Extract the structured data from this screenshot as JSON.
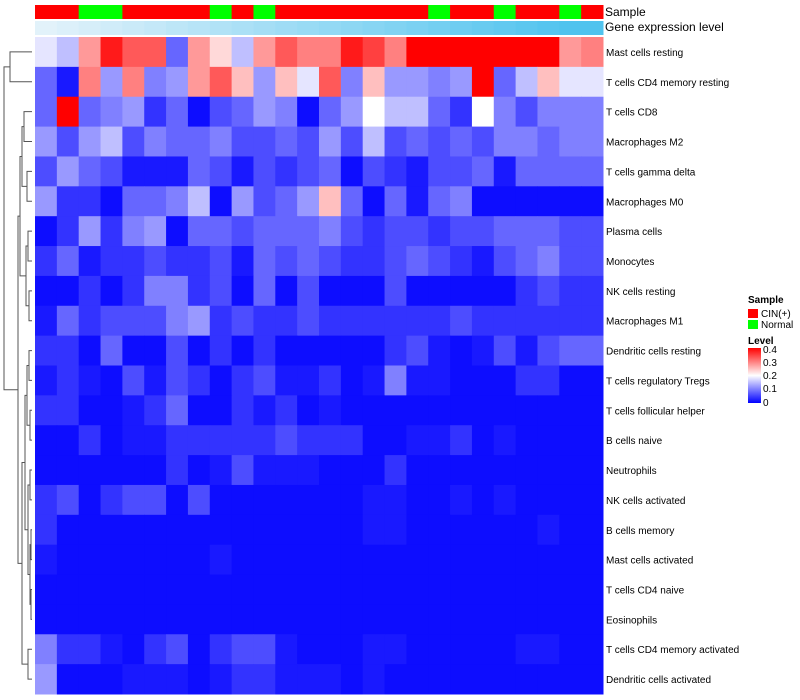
{
  "chart_data": {
    "type": "heatmap",
    "title": "",
    "annotation_tracks": [
      {
        "name": "Sample",
        "label": "Sample"
      },
      {
        "name": "Gene expression level",
        "label": "Gene expression level"
      }
    ],
    "samples": [
      "C",
      "C",
      "N",
      "N",
      "C",
      "C",
      "C",
      "C",
      "N",
      "C",
      "N",
      "C",
      "C",
      "C",
      "C",
      "C",
      "C",
      "C",
      "N",
      "C",
      "C",
      "N",
      "C",
      "C",
      "N",
      "C"
    ],
    "expression_track": [
      0.04,
      0.08,
      0.12,
      0.16,
      0.2,
      0.24,
      0.28,
      0.32,
      0.36,
      0.4,
      0.44,
      0.48,
      0.52,
      0.56,
      0.6,
      0.64,
      0.68,
      0.72,
      0.76,
      0.8,
      0.84,
      0.88,
      0.92,
      0.96,
      1.0,
      1.0
    ],
    "rows": [
      "Mast cells resting",
      "T cells CD4 memory resting",
      "T cells CD8",
      "Macrophages M2",
      "T cells gamma delta",
      "Macrophages M0",
      "Plasma cells",
      "Monocytes",
      "NK cells resting",
      "Macrophages M1",
      "Dendritic cells resting",
      "T cells regulatory  Tregs",
      "T cells follicular helper",
      "B cells naive",
      "Neutrophils",
      "NK cells activated",
      "B cells memory",
      "Mast cells activated",
      "T cells CD4 naive",
      "Eosinophils",
      "T cells CD4 memory activated",
      "Dendritic cells activated"
    ],
    "values": [
      [
        0.18,
        0.15,
        0.28,
        0.38,
        0.33,
        0.33,
        0.08,
        0.28,
        0.23,
        0.15,
        0.28,
        0.33,
        0.3,
        0.3,
        0.38,
        0.35,
        0.3,
        0.4,
        0.4,
        0.4,
        0.4,
        0.4,
        0.4,
        0.4,
        0.28,
        0.3
      ],
      [
        0.08,
        0.02,
        0.3,
        0.12,
        0.3,
        0.1,
        0.12,
        0.28,
        0.33,
        0.25,
        0.12,
        0.25,
        0.18,
        0.33,
        0.1,
        0.25,
        0.12,
        0.12,
        0.1,
        0.12,
        0.4,
        0.08,
        0.15,
        0.25,
        0.18,
        0.18
      ],
      [
        0.08,
        0.4,
        0.08,
        0.1,
        0.12,
        0.04,
        0.08,
        0.01,
        0.06,
        0.08,
        0.12,
        0.1,
        0.01,
        0.08,
        0.12,
        0.2,
        0.15,
        0.15,
        0.08,
        0.04,
        0.2,
        0.1,
        0.06,
        0.1,
        0.1,
        0.1
      ],
      [
        0.12,
        0.06,
        0.12,
        0.15,
        0.06,
        0.1,
        0.08,
        0.08,
        0.1,
        0.06,
        0.06,
        0.08,
        0.06,
        0.12,
        0.06,
        0.15,
        0.06,
        0.08,
        0.06,
        0.08,
        0.06,
        0.1,
        0.1,
        0.08,
        0.1,
        0.1
      ],
      [
        0.06,
        0.12,
        0.08,
        0.06,
        0.02,
        0.02,
        0.02,
        0.08,
        0.06,
        0.02,
        0.06,
        0.04,
        0.06,
        0.08,
        0.01,
        0.06,
        0.04,
        0.02,
        0.06,
        0.06,
        0.08,
        0.02,
        0.08,
        0.08,
        0.08,
        0.08
      ],
      [
        0.12,
        0.04,
        0.04,
        0.01,
        0.08,
        0.08,
        0.1,
        0.15,
        0.01,
        0.12,
        0.06,
        0.08,
        0.12,
        0.25,
        0.08,
        0.01,
        0.08,
        0.02,
        0.08,
        0.1,
        0.01,
        0.01,
        0.01,
        0.01,
        0.01,
        0.01
      ],
      [
        0.01,
        0.04,
        0.12,
        0.04,
        0.1,
        0.12,
        0.01,
        0.08,
        0.08,
        0.06,
        0.08,
        0.08,
        0.08,
        0.1,
        0.06,
        0.04,
        0.06,
        0.06,
        0.04,
        0.06,
        0.06,
        0.08,
        0.08,
        0.08,
        0.06,
        0.06
      ],
      [
        0.04,
        0.08,
        0.02,
        0.04,
        0.04,
        0.06,
        0.04,
        0.04,
        0.06,
        0.02,
        0.08,
        0.06,
        0.08,
        0.06,
        0.04,
        0.04,
        0.06,
        0.08,
        0.06,
        0.04,
        0.02,
        0.06,
        0.08,
        0.1,
        0.06,
        0.06
      ],
      [
        0.01,
        0.01,
        0.04,
        0.01,
        0.04,
        0.1,
        0.1,
        0.04,
        0.06,
        0.01,
        0.08,
        0.01,
        0.06,
        0.01,
        0.01,
        0.01,
        0.06,
        0.01,
        0.01,
        0.01,
        0.01,
        0.01,
        0.04,
        0.06,
        0.04,
        0.04
      ],
      [
        0.02,
        0.08,
        0.04,
        0.06,
        0.06,
        0.06,
        0.1,
        0.12,
        0.04,
        0.06,
        0.04,
        0.04,
        0.06,
        0.04,
        0.04,
        0.04,
        0.04,
        0.04,
        0.04,
        0.06,
        0.04,
        0.04,
        0.04,
        0.04,
        0.04,
        0.04
      ],
      [
        0.04,
        0.04,
        0.01,
        0.08,
        0.01,
        0.01,
        0.06,
        0.01,
        0.04,
        0.01,
        0.04,
        0.01,
        0.01,
        0.01,
        0.01,
        0.01,
        0.04,
        0.06,
        0.02,
        0.01,
        0.02,
        0.06,
        0.02,
        0.06,
        0.08,
        0.08
      ],
      [
        0.02,
        0.04,
        0.02,
        0.01,
        0.06,
        0.02,
        0.06,
        0.04,
        0.01,
        0.04,
        0.06,
        0.02,
        0.02,
        0.04,
        0.01,
        0.02,
        0.1,
        0.02,
        0.02,
        0.01,
        0.01,
        0.01,
        0.04,
        0.04,
        0.01,
        0.01
      ],
      [
        0.04,
        0.04,
        0.01,
        0.01,
        0.02,
        0.04,
        0.08,
        0.01,
        0.01,
        0.04,
        0.02,
        0.04,
        0.01,
        0.02,
        0.01,
        0.01,
        0.01,
        0.01,
        0.01,
        0.01,
        0.01,
        0.01,
        0.01,
        0.01,
        0.01,
        0.01
      ],
      [
        0.01,
        0.01,
        0.04,
        0.01,
        0.02,
        0.02,
        0.04,
        0.04,
        0.04,
        0.04,
        0.04,
        0.06,
        0.04,
        0.04,
        0.04,
        0.01,
        0.01,
        0.02,
        0.02,
        0.04,
        0.01,
        0.02,
        0.01,
        0.01,
        0.01,
        0.01
      ],
      [
        0.01,
        0.01,
        0.01,
        0.01,
        0.01,
        0.01,
        0.04,
        0.01,
        0.02,
        0.06,
        0.02,
        0.02,
        0.02,
        0.01,
        0.01,
        0.01,
        0.04,
        0.01,
        0.01,
        0.01,
        0.01,
        0.01,
        0.01,
        0.01,
        0.01,
        0.01
      ],
      [
        0.04,
        0.06,
        0.01,
        0.04,
        0.06,
        0.06,
        0.01,
        0.06,
        0.01,
        0.01,
        0.01,
        0.01,
        0.01,
        0.01,
        0.01,
        0.02,
        0.02,
        0.01,
        0.01,
        0.02,
        0.01,
        0.02,
        0.01,
        0.01,
        0.01,
        0.01
      ],
      [
        0.04,
        0.01,
        0.01,
        0.01,
        0.01,
        0.01,
        0.01,
        0.01,
        0.01,
        0.01,
        0.01,
        0.01,
        0.01,
        0.01,
        0.01,
        0.02,
        0.02,
        0.01,
        0.01,
        0.01,
        0.01,
        0.01,
        0.01,
        0.02,
        0.01,
        0.01
      ],
      [
        0.02,
        0.01,
        0.01,
        0.01,
        0.01,
        0.01,
        0.01,
        0.01,
        0.02,
        0.01,
        0.01,
        0.01,
        0.01,
        0.01,
        0.01,
        0.01,
        0.01,
        0.01,
        0.01,
        0.01,
        0.01,
        0.01,
        0.01,
        0.01,
        0.01,
        0.01
      ],
      [
        0.01,
        0.01,
        0.01,
        0.01,
        0.01,
        0.01,
        0.01,
        0.01,
        0.01,
        0.01,
        0.01,
        0.01,
        0.01,
        0.01,
        0.01,
        0.01,
        0.01,
        0.01,
        0.01,
        0.01,
        0.01,
        0.01,
        0.01,
        0.01,
        0.01,
        0.01
      ],
      [
        0.01,
        0.01,
        0.01,
        0.01,
        0.01,
        0.01,
        0.01,
        0.01,
        0.01,
        0.01,
        0.01,
        0.01,
        0.01,
        0.01,
        0.01,
        0.01,
        0.01,
        0.01,
        0.01,
        0.01,
        0.01,
        0.01,
        0.01,
        0.01,
        0.01,
        0.01
      ],
      [
        0.1,
        0.04,
        0.04,
        0.02,
        0.01,
        0.04,
        0.06,
        0.01,
        0.04,
        0.06,
        0.06,
        0.02,
        0.01,
        0.01,
        0.01,
        0.02,
        0.02,
        0.01,
        0.01,
        0.01,
        0.01,
        0.01,
        0.02,
        0.02,
        0.01,
        0.01
      ],
      [
        0.12,
        0.01,
        0.01,
        0.01,
        0.02,
        0.02,
        0.02,
        0.01,
        0.02,
        0.04,
        0.04,
        0.02,
        0.02,
        0.02,
        0.01,
        0.02,
        0.01,
        0.01,
        0.01,
        0.01,
        0.01,
        0.01,
        0.01,
        0.01,
        0.01,
        0.01
      ]
    ],
    "value_range": [
      0,
      0.4
    ],
    "color_low": "#0000ff",
    "color_mid": "#ffffff",
    "color_high": "#ff0000",
    "expression_color_light": "#e8f4fb",
    "expression_color_dark": "#50c3ee",
    "legend": {
      "sample": {
        "title": "Sample",
        "items": [
          {
            "label": "CIN(+)",
            "color": "#ff0000"
          },
          {
            "label": "Normal",
            "color": "#00ff00"
          }
        ]
      },
      "level": {
        "title": "Level",
        "ticks": [
          "0.4",
          "0.3",
          "0.2",
          "0.1",
          "0"
        ]
      }
    }
  }
}
